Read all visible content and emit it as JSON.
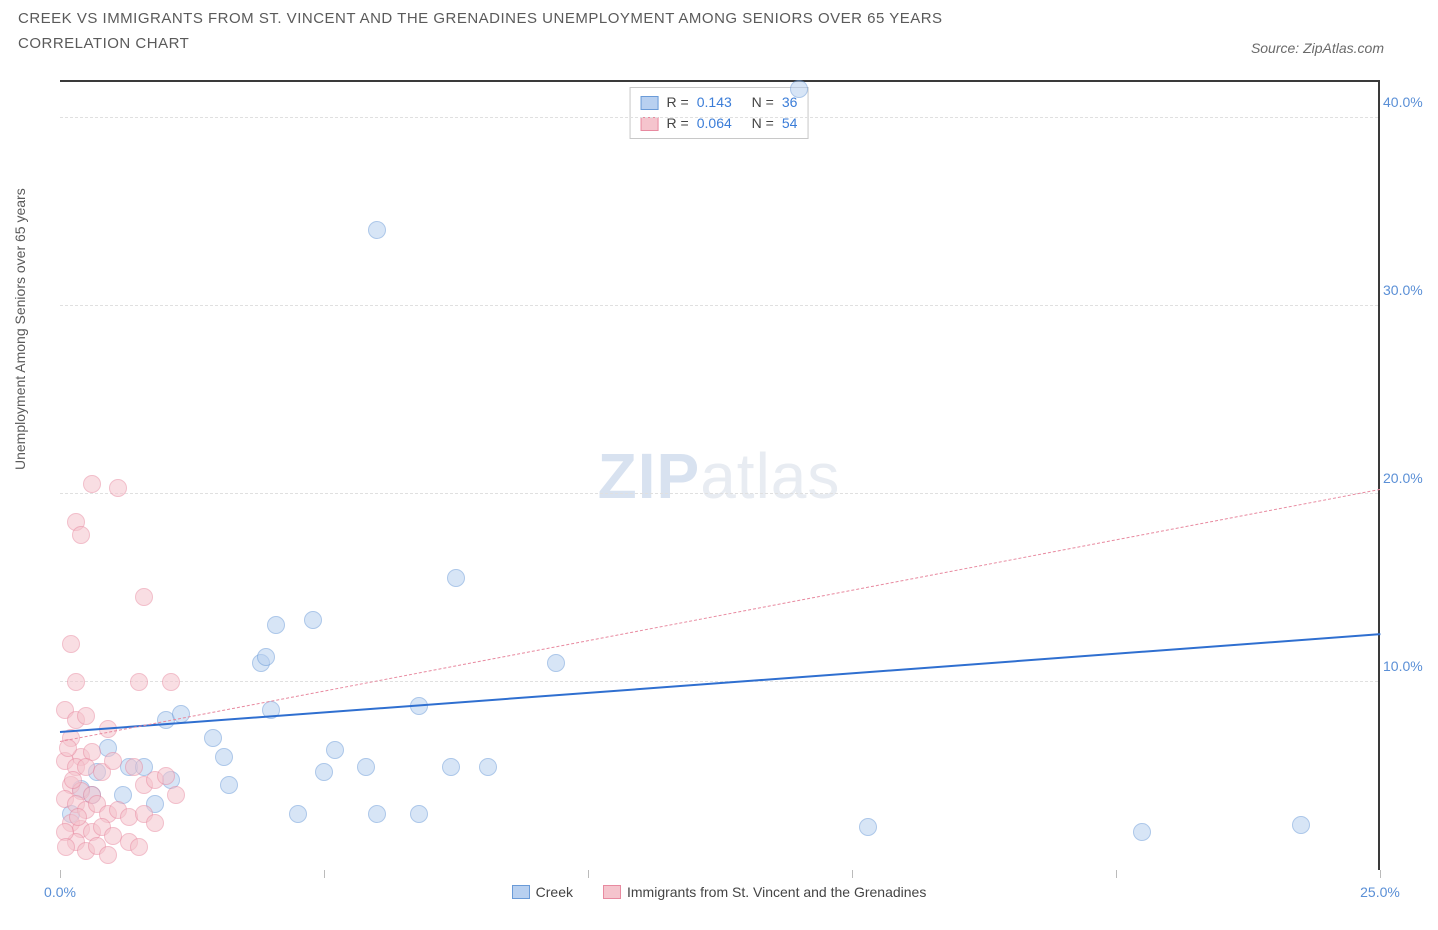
{
  "title_line1": "CREEK VS IMMIGRANTS FROM ST. VINCENT AND THE GRENADINES UNEMPLOYMENT AMONG SENIORS OVER 65 YEARS",
  "title_line2": "CORRELATION CHART",
  "source": "Source: ZipAtlas.com",
  "y_axis_label": "Unemployment Among Seniors over 65 years",
  "watermark_zip": "ZIP",
  "watermark_atlas": "atlas",
  "chart": {
    "type": "scatter",
    "xlim": [
      0,
      25
    ],
    "ylim": [
      0,
      42
    ],
    "x_ticks": [
      0,
      5,
      10,
      15,
      20,
      25
    ],
    "x_tick_labels": [
      "0.0%",
      "",
      "",
      "",
      "",
      "25.0%"
    ],
    "y_ticks": [
      10,
      20,
      30,
      40
    ],
    "y_tick_labels": [
      "10.0%",
      "20.0%",
      "30.0%",
      "40.0%"
    ],
    "background_color": "#ffffff",
    "grid_color": "#e0e0e0",
    "point_radius": 9,
    "point_opacity": 0.55,
    "series": [
      {
        "name": "Creek",
        "color_fill": "#b8d0f0",
        "color_stroke": "#6a9bd8",
        "r_value": "0.143",
        "n_value": "36",
        "trend": {
          "x1": 0,
          "y1": 7.3,
          "x2": 25,
          "y2": 12.5,
          "color": "#2f6fd0",
          "width": 2,
          "dash": "solid"
        },
        "points": [
          [
            14.0,
            41.5
          ],
          [
            6.0,
            34.0
          ],
          [
            7.5,
            15.5
          ],
          [
            9.4,
            11.0
          ],
          [
            6.8,
            8.7
          ],
          [
            5.0,
            5.2
          ],
          [
            4.1,
            13.0
          ],
          [
            4.8,
            13.3
          ],
          [
            3.8,
            11.0
          ],
          [
            3.9,
            11.3
          ],
          [
            2.9,
            7.0
          ],
          [
            2.0,
            8.0
          ],
          [
            2.1,
            4.8
          ],
          [
            2.3,
            8.3
          ],
          [
            3.1,
            6.0
          ],
          [
            3.2,
            4.5
          ],
          [
            5.2,
            6.4
          ],
          [
            5.8,
            5.5
          ],
          [
            6.0,
            3.0
          ],
          [
            6.8,
            3.0
          ],
          [
            7.4,
            5.5
          ],
          [
            8.1,
            5.5
          ],
          [
            4.5,
            3.0
          ],
          [
            1.2,
            4.0
          ],
          [
            1.3,
            5.5
          ],
          [
            0.7,
            5.2
          ],
          [
            0.6,
            4.0
          ],
          [
            0.9,
            6.5
          ],
          [
            15.3,
            2.3
          ],
          [
            20.5,
            2.0
          ],
          [
            23.5,
            2.4
          ],
          [
            4.0,
            8.5
          ],
          [
            1.6,
            5.5
          ],
          [
            1.8,
            3.5
          ],
          [
            0.4,
            4.3
          ],
          [
            0.2,
            3.0
          ]
        ]
      },
      {
        "name": "Immigrants from St. Vincent and the Grenadines",
        "color_fill": "#f5c4cd",
        "color_stroke": "#e88aa0",
        "r_value": "0.064",
        "n_value": "54",
        "trend": {
          "x1": 0,
          "y1": 6.8,
          "x2": 25,
          "y2": 20.2,
          "color": "#e88aa0",
          "width": 1,
          "dash": "dashed"
        },
        "points": [
          [
            0.6,
            20.5
          ],
          [
            1.1,
            20.3
          ],
          [
            0.3,
            18.5
          ],
          [
            0.4,
            17.8
          ],
          [
            1.6,
            14.5
          ],
          [
            0.2,
            12.0
          ],
          [
            0.3,
            10.0
          ],
          [
            1.5,
            10.0
          ],
          [
            2.1,
            10.0
          ],
          [
            0.1,
            8.5
          ],
          [
            0.3,
            8.0
          ],
          [
            0.5,
            8.2
          ],
          [
            0.9,
            7.5
          ],
          [
            0.2,
            7.0
          ],
          [
            0.4,
            6.0
          ],
          [
            0.6,
            6.3
          ],
          [
            0.1,
            5.8
          ],
          [
            0.3,
            5.5
          ],
          [
            0.5,
            5.5
          ],
          [
            0.8,
            5.2
          ],
          [
            1.0,
            5.8
          ],
          [
            1.4,
            5.5
          ],
          [
            1.6,
            4.5
          ],
          [
            0.2,
            4.5
          ],
          [
            0.4,
            4.2
          ],
          [
            0.6,
            4.0
          ],
          [
            0.1,
            3.8
          ],
          [
            0.3,
            3.5
          ],
          [
            0.5,
            3.2
          ],
          [
            0.7,
            3.5
          ],
          [
            0.9,
            3.0
          ],
          [
            1.1,
            3.2
          ],
          [
            1.3,
            2.8
          ],
          [
            1.6,
            3.0
          ],
          [
            1.8,
            2.5
          ],
          [
            0.2,
            2.5
          ],
          [
            0.4,
            2.2
          ],
          [
            0.6,
            2.0
          ],
          [
            0.8,
            2.3
          ],
          [
            1.0,
            1.8
          ],
          [
            1.3,
            1.5
          ],
          [
            1.5,
            1.2
          ],
          [
            0.3,
            1.5
          ],
          [
            0.5,
            1.0
          ],
          [
            0.7,
            1.3
          ],
          [
            0.9,
            0.8
          ],
          [
            1.8,
            4.8
          ],
          [
            2.2,
            4.0
          ],
          [
            2.0,
            5.0
          ],
          [
            0.1,
            2.0
          ],
          [
            0.15,
            6.5
          ],
          [
            0.25,
            4.8
          ],
          [
            0.35,
            2.8
          ],
          [
            0.12,
            1.2
          ]
        ]
      }
    ]
  },
  "legend": {
    "series1_label": "Creek",
    "series2_label": "Immigrants from St. Vincent and the Grenadines"
  },
  "stats_labels": {
    "r": "R =",
    "n": "N ="
  }
}
